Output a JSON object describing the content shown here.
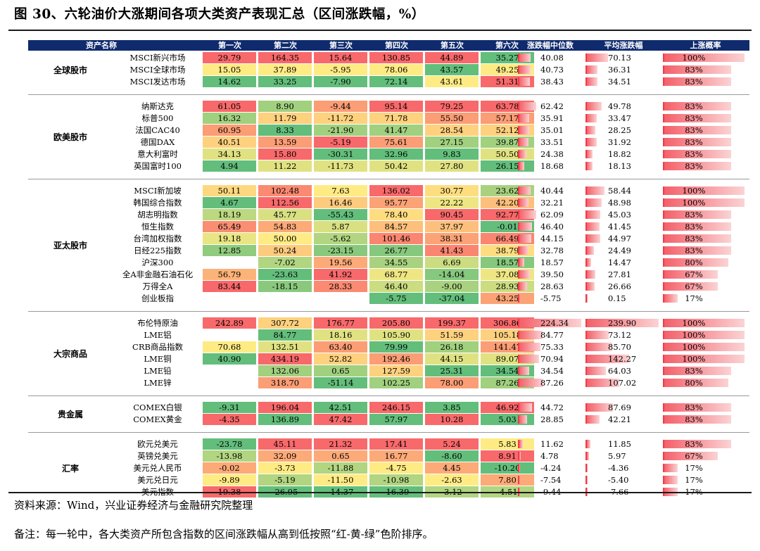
{
  "title": "图 30、六轮油价大涨期间各项大类资产表现汇总（区间涨跌幅，%）",
  "headers": [
    "资产名称",
    "第一次",
    "第二次",
    "第三次",
    "第四次",
    "第五次",
    "第六次",
    "涨跌幅中位数",
    "平均涨跌幅",
    "上涨概率"
  ],
  "colors": {
    "header_bg": "#0f2b6e",
    "red": "#f8696b",
    "yellow": "#ffeb84",
    "green": "#63be7b",
    "bar": "#f4606a"
  },
  "groups": [
    {
      "name": "全球股市",
      "rows": [
        {
          "asset": "MSCI新兴市场",
          "v": [
            "29.79",
            "164.35",
            "15.64",
            "130.85",
            "44.89",
            "35.27"
          ],
          "median": "40.08",
          "mean": "70.13",
          "prob": "100%"
        },
        {
          "asset": "MSCI全球市场",
          "v": [
            "15.05",
            "37.89",
            "-5.95",
            "78.06",
            "43.57",
            "49.25"
          ],
          "median": "40.73",
          "mean": "36.31",
          "prob": "83%"
        },
        {
          "asset": "MSCI发达市场",
          "v": [
            "14.62",
            "33.25",
            "-7.90",
            "72.14",
            "43.61",
            "51.31"
          ],
          "median": "38.43",
          "mean": "34.51",
          "prob": "83%"
        }
      ]
    },
    {
      "name": "欧美股市",
      "rows": [
        {
          "asset": "纳斯达克",
          "v": [
            "61.05",
            "8.90",
            "-9.44",
            "95.14",
            "79.25",
            "63.78"
          ],
          "median": "62.42",
          "mean": "49.78",
          "prob": "83%"
        },
        {
          "asset": "标普500",
          "v": [
            "16.32",
            "11.79",
            "-11.72",
            "71.78",
            "55.50",
            "57.17"
          ],
          "median": "35.91",
          "mean": "33.47",
          "prob": "83%"
        },
        {
          "asset": "法国CAC40",
          "v": [
            "60.95",
            "8.33",
            "-21.90",
            "41.47",
            "28.54",
            "52.12"
          ],
          "median": "35.01",
          "mean": "28.25",
          "prob": "83%"
        },
        {
          "asset": "德国DAX",
          "v": [
            "40.51",
            "13.59",
            "-5.19",
            "75.61",
            "27.15",
            "39.87"
          ],
          "median": "33.51",
          "mean": "31.92",
          "prob": "83%"
        },
        {
          "asset": "意大利富时",
          "v": [
            "34.13",
            "15.80",
            "-30.31",
            "32.96",
            "9.83",
            "50.50"
          ],
          "median": "24.38",
          "mean": "18.82",
          "prob": "83%"
        },
        {
          "asset": "英国富时100",
          "v": [
            "4.94",
            "11.22",
            "-11.73",
            "50.42",
            "27.80",
            "26.15"
          ],
          "median": "18.68",
          "mean": "18.13",
          "prob": "83%"
        }
      ]
    },
    {
      "name": "亚太股市",
      "rows": [
        {
          "asset": "MSCI新加坡",
          "v": [
            "50.11",
            "102.48",
            "7.63",
            "136.02",
            "30.77",
            "23.62"
          ],
          "median": "40.44",
          "mean": "58.44",
          "prob": "100%"
        },
        {
          "asset": "韩国综合指数",
          "v": [
            "4.67",
            "112.56",
            "16.46",
            "95.77",
            "22.22",
            "42.20"
          ],
          "median": "32.21",
          "mean": "48.98",
          "prob": "100%"
        },
        {
          "asset": "胡志明指数",
          "v": [
            "18.19",
            "45.77",
            "-55.43",
            "78.40",
            "90.45",
            "92.77"
          ],
          "median": "62.09",
          "mean": "45.03",
          "prob": "83%"
        },
        {
          "asset": "恒生指数",
          "v": [
            "65.49",
            "54.83",
            "5.87",
            "84.57",
            "37.97",
            "-0.01"
          ],
          "median": "46.40",
          "mean": "41.45",
          "prob": "83%"
        },
        {
          "asset": "台湾加权指数",
          "v": [
            "19.18",
            "50.00",
            "-5.62",
            "101.46",
            "38.31",
            "66.49"
          ],
          "median": "44.15",
          "mean": "44.97",
          "prob": "83%"
        },
        {
          "asset": "日经225指数",
          "v": [
            "12.85",
            "50.24",
            "-23.15",
            "26.77",
            "41.43",
            "38.79"
          ],
          "median": "32.78",
          "mean": "24.49",
          "prob": "83%"
        },
        {
          "asset": "沪深300",
          "v": [
            "",
            "-7.02",
            "19.56",
            "34.55",
            "6.69",
            "18.57"
          ],
          "median": "18.57",
          "mean": "14.47",
          "prob": "80%"
        },
        {
          "asset": "全A非金融石油石化",
          "v": [
            "56.79",
            "-23.63",
            "41.92",
            "68.77",
            "-14.04",
            "37.08"
          ],
          "median": "39.50",
          "mean": "27.81",
          "prob": "67%"
        },
        {
          "asset": "万得全A",
          "v": [
            "83.44",
            "-18.15",
            "28.33",
            "46.40",
            "-9.00",
            "28.93"
          ],
          "median": "28.63",
          "mean": "26.66",
          "prob": "67%"
        },
        {
          "asset": "创业板指",
          "v": [
            "",
            "",
            "",
            "-5.75",
            "-37.04",
            "43.25"
          ],
          "median": "-5.75",
          "mean": "0.15",
          "prob": "17%"
        }
      ]
    },
    {
      "name": "大宗商品",
      "rows": [
        {
          "asset": "布伦特原油",
          "v": [
            "242.89",
            "307.72",
            "176.77",
            "205.80",
            "199.37",
            "306.86"
          ],
          "median": "224.34",
          "mean": "239.90",
          "prob": "100%"
        },
        {
          "asset": "LME铝",
          "v": [
            "",
            "84.77",
            "18.16",
            "105.90",
            "51.59",
            "105.18"
          ],
          "median": "84.77",
          "mean": "73.12",
          "prob": "100%"
        },
        {
          "asset": "CRB商品指数",
          "v": [
            "70.68",
            "132.51",
            "63.40",
            "79.99",
            "26.18",
            "141.47"
          ],
          "median": "75.33",
          "mean": "85.70",
          "prob": "100%"
        },
        {
          "asset": "LME铜",
          "v": [
            "40.90",
            "434.19",
            "52.82",
            "192.46",
            "44.15",
            "89.07"
          ],
          "median": "70.94",
          "mean": "142.27",
          "prob": "100%"
        },
        {
          "asset": "LME铅",
          "v": [
            "",
            "132.06",
            "0.65",
            "127.59",
            "25.31",
            "34.54"
          ],
          "median": "34.54",
          "mean": "64.03",
          "prob": "83%"
        },
        {
          "asset": "LME锌",
          "v": [
            "",
            "318.70",
            "-51.14",
            "102.25",
            "78.00",
            "87.26"
          ],
          "median": "87.26",
          "mean": "107.02",
          "prob": "80%"
        }
      ]
    },
    {
      "name": "贵金属",
      "rows": [
        {
          "asset": "COMEX白银",
          "v": [
            "-9.31",
            "196.04",
            "42.51",
            "246.15",
            "3.85",
            "46.92"
          ],
          "median": "44.72",
          "mean": "87.69",
          "prob": "83%"
        },
        {
          "asset": "COMEX黄金",
          "v": [
            "-4.35",
            "136.89",
            "47.42",
            "57.97",
            "10.28",
            "5.03"
          ],
          "median": "28.85",
          "mean": "42.21",
          "prob": "83%"
        }
      ]
    },
    {
      "name": "汇率",
      "rows": [
        {
          "asset": "欧元兑美元",
          "v": [
            "-23.78",
            "45.11",
            "21.32",
            "17.41",
            "5.24",
            "5.83"
          ],
          "median": "11.62",
          "mean": "11.85",
          "prob": "83%"
        },
        {
          "asset": "英镑兑美元",
          "v": [
            "-13.98",
            "32.09",
            "0.65",
            "16.77",
            "-8.60",
            "8.91"
          ],
          "median": "4.78",
          "mean": "5.97",
          "prob": "67%"
        },
        {
          "asset": "美元兑人民币",
          "v": [
            "-0.02",
            "-3.73",
            "-11.88",
            "-4.75",
            "4.45",
            "-10.20"
          ],
          "median": "-4.24",
          "mean": "-4.36",
          "prob": "17%"
        },
        {
          "asset": "美元兑日元",
          "v": [
            "-9.89",
            "-5.19",
            "-11.50",
            "-10.98",
            "-2.63",
            "7.80"
          ],
          "median": "-7.54",
          "mean": "-5.40",
          "prob": "17%"
        },
        {
          "asset": "美元指数",
          "v": [
            "19.38",
            "-26.95",
            "-14.37",
            "-16.39",
            "-3.12",
            "-4.51"
          ],
          "median": "-9.44",
          "mean": "-7.66",
          "prob": "17%"
        }
      ]
    }
  ],
  "source": "资料来源：Wind，兴业证券经济与金融研究院整理",
  "note": "备注：每一轮中，各大类资产所包含指数的区间涨跌幅从高到低按照“红-黄-绿”色阶排序。"
}
